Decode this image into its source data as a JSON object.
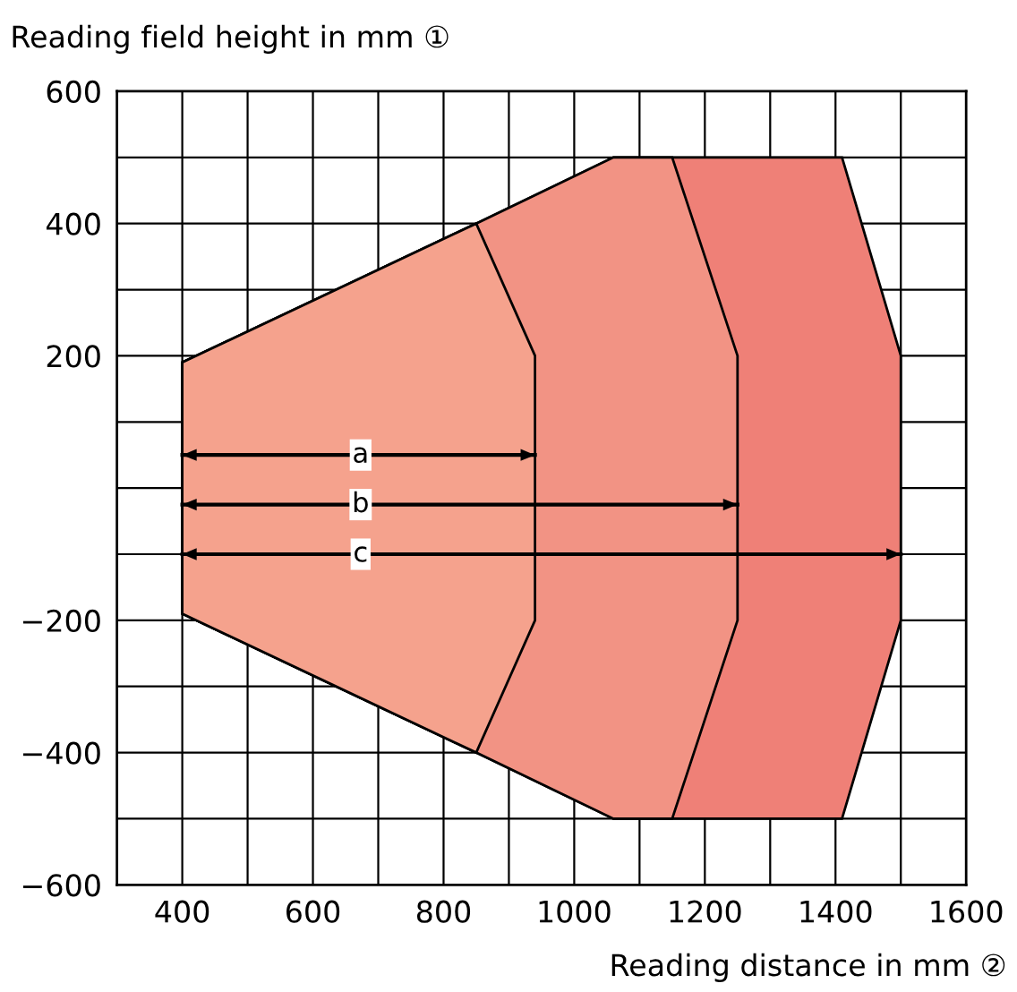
{
  "chart_data": {
    "type": "area",
    "xlabel": "Reading distance in mm ②",
    "ylabel": "Reading field height in mm ①",
    "series": [
      {
        "color": "#ef8077",
        "x": [
          400,
          850,
          1060,
          1410,
          1500,
          1500,
          1410,
          1060,
          850,
          400
        ],
        "values": [
          190,
          400,
          500,
          500,
          200,
          -200,
          -500,
          -500,
          -400,
          -190
        ]
      },
      {
        "color": "#f29384",
        "x": [
          400,
          850,
          1060,
          1150,
          1250,
          1250,
          1150,
          1060,
          850,
          400
        ],
        "values": [
          190,
          400,
          500,
          500,
          200,
          -200,
          -500,
          -500,
          -400,
          -190
        ]
      },
      {
        "color": "#f5a28d",
        "x": [
          400,
          850,
          940,
          940,
          850,
          400
        ],
        "values": [
          190,
          400,
          200,
          -200,
          -400,
          -190
        ]
      },
      {
        "type": "line",
        "name": "a",
        "color": "#000000",
        "x": [
          400,
          940
        ],
        "values": [
          50,
          50
        ]
      },
      {
        "type": "line",
        "name": "b",
        "color": "#000000",
        "x": [
          400,
          1250
        ],
        "values": [
          -25,
          -25
        ]
      },
      {
        "type": "line",
        "name": "c",
        "color": "#000000",
        "x": [
          400,
          1500
        ],
        "values": [
          -100,
          -100
        ]
      }
    ],
    "xlim": [
      300,
      1600
    ],
    "ylim": [
      -600,
      600
    ],
    "xticks": [
      {
        "value": 300,
        "label": null
      },
      400,
      {
        "value": 500,
        "label": null
      },
      600,
      {
        "value": 700,
        "label": null
      },
      800,
      {
        "value": 900,
        "label": null
      },
      1000,
      {
        "value": 1100,
        "label": null
      },
      1200,
      {
        "value": 1300,
        "label": null
      },
      1400,
      {
        "value": 1500,
        "label": null
      },
      1600
    ],
    "yticks": [
      {
        "value": -600,
        "label": "−600"
      },
      {
        "value": -500,
        "label": null
      },
      {
        "value": -400,
        "label": "−400"
      },
      {
        "value": -300,
        "label": null
      },
      {
        "value": -200,
        "label": "−200"
      },
      {
        "value": -100,
        "label": null
      },
      {
        "value": 0,
        "label": null
      },
      {
        "value": 100,
        "label": null
      },
      200,
      {
        "value": 300,
        "label": null
      },
      400,
      {
        "value": 500,
        "label": null
      },
      600
    ],
    "grid": true,
    "legend": false,
    "line_style": "solid"
  }
}
